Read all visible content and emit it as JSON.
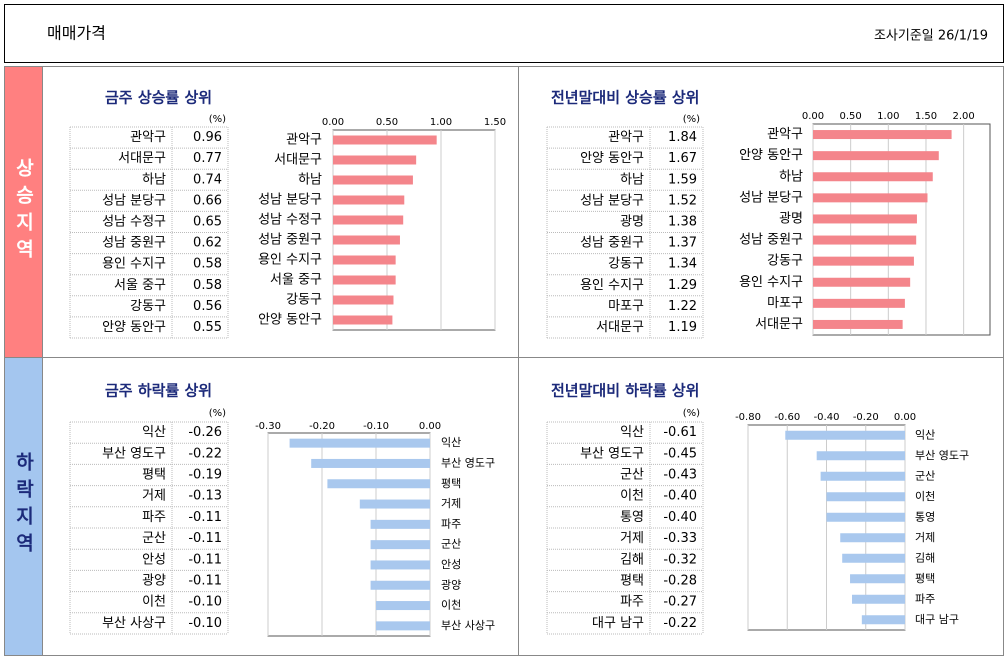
{
  "header": {
    "title": "매매가격",
    "date": "조사기준일 26/1/19"
  },
  "side_labels": [
    "상승지역",
    "하락지역"
  ],
  "chart_data": [
    {
      "type": "bar",
      "title": "금주 상승률 상위",
      "unit": "(%)",
      "color": "#f4858b",
      "categories": [
        "관악구",
        "서대문구",
        "하남",
        "성남 분당구",
        "성남 수정구",
        "성남 중원구",
        "용인 수지구",
        "서울 중구",
        "강동구",
        "안양 동안구"
      ],
      "values": [
        0.96,
        0.77,
        0.74,
        0.66,
        0.65,
        0.62,
        0.58,
        0.58,
        0.56,
        0.55
      ],
      "value_labels": [
        "0.96",
        "0.77",
        "0.74",
        "0.66",
        "0.65",
        "0.62",
        "0.58",
        "0.58",
        "0.56",
        "0.55"
      ],
      "xlim": [
        0,
        1.5
      ],
      "xticks": [
        {
          "value": 0,
          "label": "0.00"
        },
        {
          "value": 0.5,
          "label": "0.50"
        },
        {
          "value": 1,
          "label": "1.00"
        },
        {
          "value": 1.5,
          "label": "1.50"
        }
      ]
    },
    {
      "type": "bar",
      "title": "전년말대비 상승률 상위",
      "unit": "(%)",
      "color": "#f4858b",
      "categories": [
        "관악구",
        "안양 동안구",
        "하남",
        "성남 분당구",
        "광명",
        "성남 중원구",
        "강동구",
        "용인 수지구",
        "마포구",
        "서대문구"
      ],
      "values": [
        1.84,
        1.67,
        1.59,
        1.52,
        1.38,
        1.37,
        1.34,
        1.29,
        1.22,
        1.19
      ],
      "value_labels": [
        "1.84",
        "1.67",
        "1.59",
        "1.52",
        "1.38",
        "1.37",
        "1.34",
        "1.29",
        "1.22",
        "1.19"
      ],
      "xlim": [
        0,
        2.35
      ],
      "xticks": [
        {
          "value": 0,
          "label": "0.00"
        },
        {
          "value": 0.5,
          "label": "0.50"
        },
        {
          "value": 1,
          "label": "1.00"
        },
        {
          "value": 1.5,
          "label": "1.50"
        },
        {
          "value": 2,
          "label": "2.00"
        }
      ]
    },
    {
      "type": "bar",
      "title": "금주 하락률 상위",
      "unit": "(%)",
      "color": "#a9c8ee",
      "categories": [
        "익산",
        "부산 영도구",
        "평택",
        "거제",
        "파주",
        "군산",
        "안성",
        "광양",
        "이천",
        "부산 사상구"
      ],
      "values": [
        -0.26,
        -0.22,
        -0.19,
        -0.13,
        -0.11,
        -0.11,
        -0.11,
        -0.11,
        -0.1,
        -0.1
      ],
      "value_labels": [
        "-0.26",
        "-0.22",
        "-0.19",
        "-0.13",
        "-0.11",
        "-0.11",
        "-0.11",
        "-0.11",
        "-0.10",
        "-0.10"
      ],
      "xlim": [
        -0.3,
        0
      ],
      "xticks": [
        {
          "value": -0.3,
          "label": "-0.30"
        },
        {
          "value": -0.2,
          "label": "-0.20"
        },
        {
          "value": -0.1,
          "label": "-0.10"
        },
        {
          "value": 0,
          "label": "0.00"
        }
      ]
    },
    {
      "type": "bar",
      "title": "전년말대비 하락률 상위",
      "unit": "(%)",
      "color": "#a9c8ee",
      "categories": [
        "익산",
        "부산 영도구",
        "군산",
        "이천",
        "통영",
        "거제",
        "김해",
        "평택",
        "파주",
        "대구 남구"
      ],
      "values": [
        -0.61,
        -0.45,
        -0.43,
        -0.4,
        -0.4,
        -0.33,
        -0.32,
        -0.28,
        -0.27,
        -0.22
      ],
      "value_labels": [
        "-0.61",
        "-0.45",
        "-0.43",
        "-0.40",
        "-0.40",
        "-0.33",
        "-0.32",
        "-0.28",
        "-0.27",
        "-0.22"
      ],
      "xlim": [
        -0.8,
        0
      ],
      "xticks": [
        {
          "value": -0.8,
          "label": "-0.80"
        },
        {
          "value": -0.6,
          "label": "-0.60"
        },
        {
          "value": -0.4,
          "label": "-0.40"
        },
        {
          "value": -0.2,
          "label": "-0.20"
        },
        {
          "value": 0,
          "label": "0.00"
        }
      ]
    }
  ]
}
